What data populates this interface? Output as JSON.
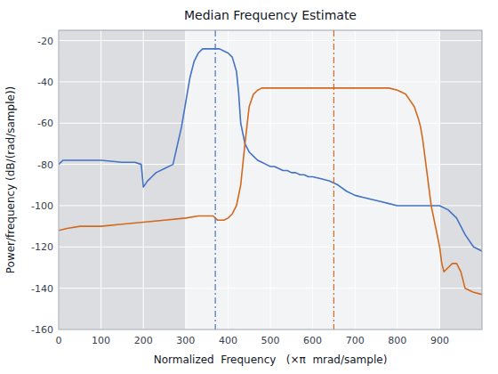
{
  "chart_data": {
    "type": "line",
    "title": "Median Frequency Estimate",
    "x_label": "Normalized  Frequency   (×π  mrad/sample)",
    "y_label": "Power/frequency (dB/(rad/sample))",
    "xlim": [
      0,
      1000
    ],
    "ylim": [
      -160,
      -15
    ],
    "xticks": [
      0,
      100,
      200,
      300,
      400,
      500,
      600,
      700,
      800,
      900
    ],
    "yticks": [
      -160,
      -140,
      -120,
      -100,
      -80,
      -60,
      -40,
      -20
    ],
    "grid": true,
    "shaded_regions": [
      [
        0,
        300
      ],
      [
        900,
        1000
      ]
    ],
    "series": [
      {
        "color": "#4472c4",
        "vline": 370,
        "x": [
          0,
          10,
          30,
          60,
          100,
          150,
          180,
          195,
          200,
          210,
          215,
          220,
          230,
          250,
          270,
          290,
          300,
          310,
          320,
          330,
          340,
          350,
          360,
          370,
          380,
          390,
          400,
          410,
          420,
          425,
          430,
          440,
          450,
          460,
          470,
          480,
          490,
          500,
          510,
          520,
          530,
          540,
          550,
          560,
          570,
          580,
          590,
          600,
          620,
          640,
          660,
          680,
          700,
          720,
          740,
          760,
          780,
          800,
          820,
          840,
          860,
          880,
          900,
          920,
          940,
          960,
          980,
          1000
        ],
        "values": [
          -80,
          -78,
          -78,
          -78,
          -78,
          -79,
          -79,
          -80,
          -91,
          -88,
          -87,
          -86,
          -84,
          -82,
          -80,
          -62,
          -50,
          -38,
          -30,
          -26,
          -24,
          -24,
          -24,
          -24,
          -24,
          -25,
          -26,
          -28,
          -35,
          -45,
          -60,
          -70,
          -74,
          -76,
          -78,
          -79,
          -80,
          -81,
          -81,
          -82,
          -83,
          -83,
          -84,
          -84,
          -85,
          -85,
          -86,
          -86,
          -87,
          -88,
          -90,
          -93,
          -95,
          -96,
          -97,
          -98,
          -99,
          -100,
          -100,
          -100,
          -100,
          -100,
          -100,
          -102,
          -106,
          -114,
          -120,
          -122
        ]
      },
      {
        "color": "#d2691e",
        "vline": 650,
        "x": [
          0,
          20,
          50,
          80,
          100,
          150,
          200,
          250,
          300,
          330,
          350,
          360,
          365,
          370,
          375,
          380,
          385,
          390,
          400,
          410,
          420,
          430,
          440,
          450,
          460,
          470,
          480,
          490,
          500,
          510,
          520,
          530,
          540,
          560,
          580,
          600,
          620,
          640,
          650,
          660,
          680,
          700,
          720,
          740,
          760,
          780,
          800,
          820,
          840,
          850,
          855,
          860,
          865,
          870,
          875,
          880,
          890,
          895,
          900,
          905,
          910,
          920,
          930,
          940,
          950,
          960,
          980,
          1000
        ],
        "values": [
          -112,
          -111,
          -110,
          -110,
          -110,
          -109,
          -108,
          -107,
          -106,
          -105,
          -105,
          -105,
          -105,
          -106,
          -107,
          -107,
          -107,
          -107,
          -106,
          -104,
          -100,
          -90,
          -70,
          -52,
          -46,
          -44,
          -43,
          -43,
          -43,
          -43,
          -43,
          -43,
          -43,
          -43,
          -43,
          -43,
          -43,
          -43,
          -43,
          -43,
          -43,
          -43,
          -43,
          -43,
          -43,
          -43,
          -44,
          -46,
          -52,
          -58,
          -62,
          -68,
          -76,
          -84,
          -92,
          -100,
          -110,
          -115,
          -120,
          -128,
          -132,
          -130,
          -128,
          -128,
          -132,
          -140,
          -142,
          -143
        ]
      }
    ]
  }
}
